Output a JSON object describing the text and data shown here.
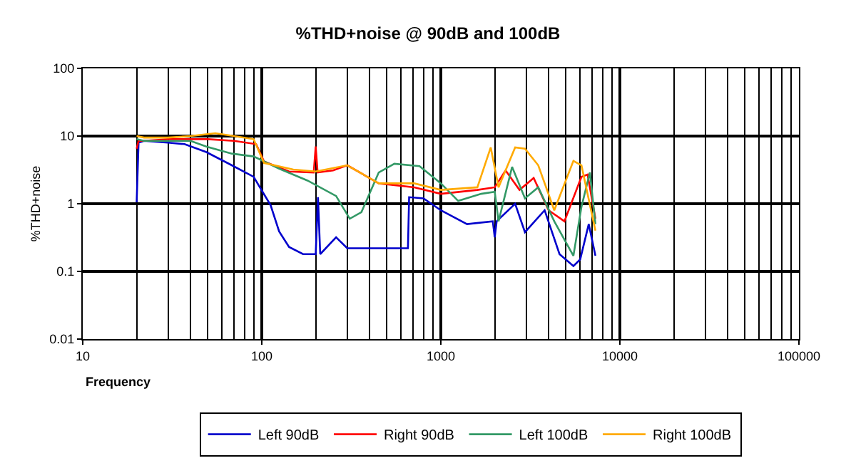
{
  "chart_data": {
    "type": "line",
    "title": "%THD+noise @ 90dB and 100dB",
    "xlabel": "Frequency",
    "ylabel": "%THD+noise",
    "log": "xy",
    "xlim": [
      10,
      100000
    ],
    "xticks": [
      10,
      100,
      1000,
      10000,
      100000
    ],
    "ylim": [
      0.01,
      100
    ],
    "yticks": [
      0.01,
      0.1,
      1,
      10,
      100
    ],
    "grid": true,
    "legend": "bottom",
    "marker": "none",
    "line_style": "solid",
    "series": [
      {
        "name": "Left 90dB",
        "color": "#0000cc",
        "x": [
          20,
          20.5,
          22,
          30,
          37,
          49,
          68,
          90,
          112,
          125,
          142,
          170,
          200,
          206,
          212,
          260,
          300,
          400,
          500,
          655,
          665,
          800,
          1000,
          1400,
          1950,
          2000,
          2050,
          2600,
          2950,
          3800,
          4600,
          5500,
          6000,
          6700,
          7300
        ],
        "values": [
          1.05,
          8,
          8.5,
          8,
          7.6,
          5.8,
          3.7,
          2.5,
          0.95,
          0.39,
          0.23,
          0.18,
          0.18,
          1.25,
          0.18,
          0.32,
          0.22,
          0.22,
          0.22,
          0.22,
          1.25,
          1.2,
          0.8,
          0.5,
          0.55,
          0.32,
          0.55,
          1.0,
          0.38,
          0.8,
          0.18,
          0.12,
          0.15,
          0.5,
          0.17
        ]
      },
      {
        "name": "Right 90dB",
        "color": "#ff0000",
        "x": [
          20,
          20.5,
          22,
          30,
          50,
          70,
          93,
          103,
          142,
          195,
          200,
          205,
          250,
          300,
          450,
          710,
          1000,
          1600,
          2000,
          2300,
          2750,
          3300,
          4000,
          4900,
          6100,
          6600,
          7300
        ],
        "values": [
          6.5,
          8.5,
          8.5,
          9,
          9,
          8.5,
          7.6,
          4.2,
          3.0,
          2.9,
          7,
          2.9,
          3.1,
          3.7,
          2.0,
          1.75,
          1.4,
          1.6,
          1.75,
          3.1,
          1.6,
          2.4,
          0.8,
          0.55,
          2.5,
          2.7,
          0.6
        ]
      },
      {
        "name": "Left 100dB",
        "color": "#339966",
        "x": [
          20,
          22,
          30,
          40,
          49,
          68,
          90,
          125,
          180,
          260,
          310,
          360,
          450,
          550,
          760,
          1000,
          1250,
          1680,
          2000,
          2100,
          2500,
          2950,
          3500,
          4300,
          5500,
          6100,
          6800,
          7300
        ],
        "values": [
          9,
          8.5,
          8.5,
          8.5,
          7,
          5.5,
          5,
          3.3,
          2.2,
          1.3,
          0.6,
          0.75,
          2.9,
          3.9,
          3.6,
          2,
          1.1,
          1.4,
          1.5,
          0.55,
          3.5,
          1.2,
          1.75,
          0.55,
          0.17,
          0.9,
          2.9,
          0.5
        ]
      },
      {
        "name": "Right 100dB",
        "color": "#ffaa00",
        "x": [
          20,
          22,
          30,
          40,
          55,
          70,
          90,
          103,
          150,
          200,
          300,
          450,
          710,
          1000,
          1600,
          1900,
          2100,
          2600,
          2950,
          3500,
          4300,
          5500,
          6100,
          7300
        ],
        "values": [
          10,
          9.5,
          9.5,
          10,
          11,
          10,
          9,
          4,
          3.2,
          3,
          3.7,
          2,
          2,
          1.6,
          1.75,
          6.8,
          1.75,
          6.8,
          6.5,
          3.7,
          0.8,
          4.3,
          3.7,
          0.4
        ]
      }
    ]
  }
}
